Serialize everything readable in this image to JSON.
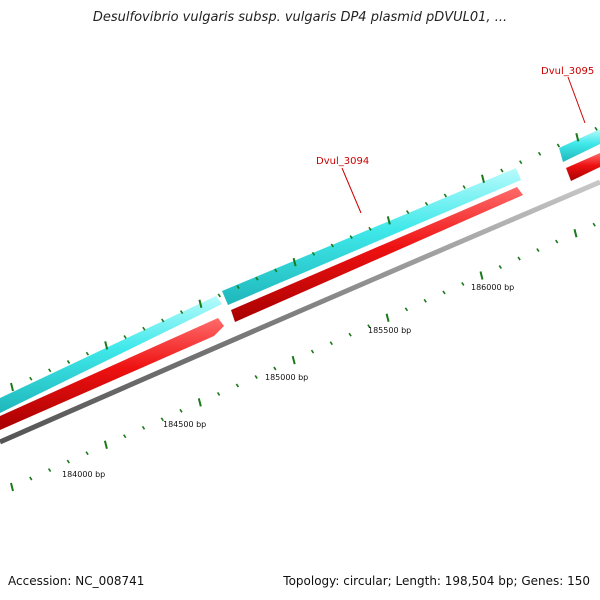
{
  "title": "Desulfovibrio vulgaris subsp. vulgaris DP4 plasmid pDVUL01, ...",
  "footer": {
    "accession": "Accession: NC_008741",
    "summary": "Topology: circular; Length: 198,504 bp; Genes: 150"
  },
  "colors": {
    "forward_strand": "#3fe8ea",
    "reverse_strand": "#ee1111",
    "backbone": "#808080",
    "tick": "#1a7a1a",
    "label_text": "#cc0000",
    "label_line": "#cc0000"
  },
  "genes": [
    {
      "label": "Dvul_3094"
    },
    {
      "label": "Dvul_3095"
    }
  ],
  "position_labels": [
    "184000 bp",
    "184500 bp",
    "185000 bp",
    "185500 bp",
    "186000 bp"
  ]
}
